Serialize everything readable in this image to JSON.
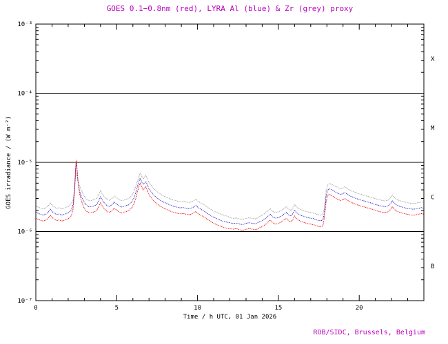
{
  "colors": {
    "magenta": "#bb00bb",
    "axis": "#000000",
    "background": "#ffffff"
  },
  "footer": {
    "credit": "ROB/SIDC, Brussels, Belgium"
  },
  "chart_data": {
    "type": "line",
    "title": "GOES 0.1−0.8nm (red), LYRA Al (blue) & Zr (grey) proxy",
    "xlabel": "Time / h UTC, 01 Jan 2026",
    "ylabel": "GOES irradiance / (W m⁻²)",
    "x_range": [
      0,
      24
    ],
    "y_range": [
      1e-07,
      0.001
    ],
    "y_scale": "log",
    "grid": false,
    "legend_position": "none",
    "x_major_ticks": [
      0,
      5,
      10,
      15,
      20
    ],
    "x_minor_tick_step": 1,
    "y_ticks": [
      {
        "label": "10⁻³",
        "value": 0.001
      },
      {
        "label": "10⁻⁴",
        "value": 0.0001
      },
      {
        "label": "10⁻⁵",
        "value": 1e-05
      },
      {
        "label": "10⁻⁶",
        "value": 1e-06
      },
      {
        "label": "10⁻⁷",
        "value": 1e-07
      }
    ],
    "hlines": [
      0.0001,
      1e-05,
      1e-06
    ],
    "flare_classes": [
      {
        "label": "X",
        "value": 0.000316
      },
      {
        "label": "M",
        "value": 3.16e-05
      },
      {
        "label": "C",
        "value": 3.16e-06
      },
      {
        "label": "B",
        "value": 3.16e-07
      }
    ],
    "values_scale": 1e-06,
    "values_unit": "W m⁻² (values listed in units of 1e-6)",
    "series": [
      {
        "key": "goes-red",
        "name": "GOES 0.1−0.8nm",
        "color": "#ee0000",
        "column": 1
      },
      {
        "key": "lyra-al-blue",
        "name": "LYRA Al proxy",
        "color": "#2222cc",
        "column": 2
      },
      {
        "key": "lyra-zr-grey",
        "name": "LYRA Zr proxy",
        "color": "#9a9a9a",
        "column": 3
      }
    ],
    "points": [
      [
        0,
        1.55,
        1.9,
        2.33
      ],
      [
        0.15,
        1.5,
        1.83,
        2.25
      ],
      [
        0.3,
        1.45,
        1.77,
        2.18
      ],
      [
        0.45,
        1.42,
        1.73,
        2.13
      ],
      [
        0.6,
        1.45,
        1.77,
        2.18
      ],
      [
        0.75,
        1.55,
        1.89,
        2.33
      ],
      [
        0.9,
        1.72,
        2.1,
        2.58
      ],
      [
        1,
        1.6,
        1.95,
        2.4
      ],
      [
        1.15,
        1.5,
        1.83,
        2.25
      ],
      [
        1.3,
        1.44,
        1.76,
        2.16
      ],
      [
        1.45,
        1.47,
        1.79,
        2.21
      ],
      [
        1.6,
        1.42,
        1.73,
        2.13
      ],
      [
        1.75,
        1.45,
        1.77,
        2.18
      ],
      [
        1.9,
        1.5,
        1.83,
        2.25
      ],
      [
        2.05,
        1.55,
        1.89,
        2.33
      ],
      [
        2.2,
        1.7,
        2.07,
        2.55
      ],
      [
        2.3,
        2.1,
        2.45,
        2.9
      ],
      [
        2.4,
        4.2,
        4,
        4.2
      ],
      [
        2.45,
        7.8,
        7.2,
        6.2
      ],
      [
        2.5,
        10.8,
        9.8,
        6.8
      ],
      [
        2.55,
        8.2,
        7.6,
        6.3
      ],
      [
        2.6,
        5.6,
        5.4,
        5.4
      ],
      [
        2.7,
        3.6,
        3.9,
        4.6
      ],
      [
        2.8,
        2.85,
        3.3,
        4
      ],
      [
        2.9,
        2.45,
        2.95,
        3.6
      ],
      [
        3,
        2.15,
        2.62,
        3.23
      ],
      [
        3.15,
        1.95,
        2.38,
        2.93
      ],
      [
        3.3,
        1.85,
        2.26,
        2.78
      ],
      [
        3.45,
        1.88,
        2.29,
        2.82
      ],
      [
        3.6,
        1.92,
        2.34,
        2.88
      ],
      [
        3.75,
        2,
        2.44,
        3
      ],
      [
        3.9,
        2.3,
        2.81,
        3.45
      ],
      [
        4,
        2.6,
        3.17,
        3.9
      ],
      [
        4.1,
        2.35,
        2.87,
        3.53
      ],
      [
        4.25,
        2.1,
        2.56,
        3.15
      ],
      [
        4.4,
        1.95,
        2.38,
        2.93
      ],
      [
        4.55,
        1.88,
        2.29,
        2.82
      ],
      [
        4.7,
        2,
        2.44,
        3
      ],
      [
        4.85,
        2.18,
        2.66,
        3.27
      ],
      [
        5,
        2.05,
        2.5,
        3.08
      ],
      [
        5.15,
        1.92,
        2.34,
        2.88
      ],
      [
        5.3,
        1.85,
        2.26,
        2.78
      ],
      [
        5.45,
        1.9,
        2.32,
        2.85
      ],
      [
        5.6,
        1.95,
        2.38,
        2.93
      ],
      [
        5.75,
        2,
        2.44,
        3
      ],
      [
        5.9,
        2.15,
        2.62,
        3.23
      ],
      [
        6.05,
        2.45,
        2.99,
        3.68
      ],
      [
        6.2,
        3.1,
        3.78,
        4.65
      ],
      [
        6.35,
        4.3,
        5.1,
        6
      ],
      [
        6.45,
        5,
        5.9,
        7
      ],
      [
        6.55,
        4.4,
        5.2,
        6.3
      ],
      [
        6.65,
        4,
        4.8,
        5.8
      ],
      [
        6.8,
        4.5,
        5.3,
        6.5
      ],
      [
        6.9,
        3.9,
        4.7,
        5.7
      ],
      [
        7,
        3.4,
        4.15,
        5.1
      ],
      [
        7.15,
        3.05,
        3.72,
        4.58
      ],
      [
        7.3,
        2.75,
        3.36,
        4.13
      ],
      [
        7.45,
        2.55,
        3.11,
        3.83
      ],
      [
        7.6,
        2.4,
        2.93,
        3.6
      ],
      [
        7.75,
        2.28,
        2.78,
        3.42
      ],
      [
        7.9,
        2.18,
        2.66,
        3.27
      ],
      [
        8.1,
        2.08,
        2.54,
        3.12
      ],
      [
        8.3,
        1.98,
        2.42,
        2.97
      ],
      [
        8.5,
        1.9,
        2.32,
        2.85
      ],
      [
        8.7,
        1.85,
        2.26,
        2.78
      ],
      [
        8.9,
        1.8,
        2.2,
        2.7
      ],
      [
        9.1,
        1.82,
        2.22,
        2.73
      ],
      [
        9.3,
        1.78,
        2.17,
        2.67
      ],
      [
        9.5,
        1.75,
        2.14,
        2.63
      ],
      [
        9.7,
        1.82,
        2.22,
        2.73
      ],
      [
        9.9,
        1.95,
        2.38,
        2.93
      ],
      [
        10,
        1.85,
        2.26,
        2.78
      ],
      [
        10.2,
        1.72,
        2.1,
        2.58
      ],
      [
        10.4,
        1.62,
        1.98,
        2.43
      ],
      [
        10.6,
        1.5,
        1.83,
        2.25
      ],
      [
        10.8,
        1.4,
        1.71,
        2.1
      ],
      [
        11,
        1.32,
        1.61,
        1.98
      ],
      [
        11.2,
        1.25,
        1.53,
        1.88
      ],
      [
        11.4,
        1.2,
        1.46,
        1.8
      ],
      [
        11.6,
        1.15,
        1.4,
        1.73
      ],
      [
        11.8,
        1.12,
        1.37,
        1.68
      ],
      [
        12,
        1.1,
        1.34,
        1.6
      ],
      [
        12.2,
        1.08,
        1.3,
        1.55
      ],
      [
        12.4,
        1.1,
        1.32,
        1.57
      ],
      [
        12.6,
        1.06,
        1.28,
        1.52
      ],
      [
        12.8,
        1.04,
        1.26,
        1.5
      ],
      [
        13,
        1.08,
        1.31,
        1.55
      ],
      [
        13.2,
        1.1,
        1.34,
        1.58
      ],
      [
        13.4,
        1.08,
        1.31,
        1.55
      ],
      [
        13.6,
        1.06,
        1.29,
        1.52
      ],
      [
        13.8,
        1.12,
        1.37,
        1.62
      ],
      [
        14,
        1.18,
        1.44,
        1.72
      ],
      [
        14.2,
        1.26,
        1.54,
        1.85
      ],
      [
        14.4,
        1.4,
        1.71,
        2.05
      ],
      [
        14.5,
        1.46,
        1.78,
        2.15
      ],
      [
        14.65,
        1.34,
        1.63,
        1.96
      ],
      [
        14.8,
        1.28,
        1.56,
        1.88
      ],
      [
        15,
        1.3,
        1.59,
        1.92
      ],
      [
        15.2,
        1.38,
        1.68,
        2.03
      ],
      [
        15.4,
        1.5,
        1.83,
        2.2
      ],
      [
        15.5,
        1.55,
        1.89,
        2.28
      ],
      [
        15.65,
        1.42,
        1.73,
        2.1
      ],
      [
        15.8,
        1.38,
        1.68,
        2.03
      ],
      [
        15.9,
        1.5,
        1.83,
        2.2
      ],
      [
        16,
        1.68,
        2.05,
        2.47
      ],
      [
        16.1,
        1.55,
        1.89,
        2.28
      ],
      [
        16.25,
        1.46,
        1.78,
        2.15
      ],
      [
        16.4,
        1.4,
        1.71,
        2.06
      ],
      [
        16.6,
        1.35,
        1.65,
        1.99
      ],
      [
        16.8,
        1.3,
        1.59,
        1.92
      ],
      [
        17,
        1.28,
        1.56,
        1.88
      ],
      [
        17.2,
        1.25,
        1.53,
        1.84
      ],
      [
        17.4,
        1.2,
        1.46,
        1.77
      ],
      [
        17.6,
        1.17,
        1.43,
        1.72
      ],
      [
        17.75,
        1.2,
        1.46,
        1.77
      ],
      [
        17.85,
        1.6,
        1.9,
        2.2
      ],
      [
        17.95,
        2.7,
        3.2,
        3.8
      ],
      [
        18.05,
        3.3,
        3.95,
        4.7
      ],
      [
        18.15,
        3.45,
        4.15,
        4.95
      ],
      [
        18.25,
        3.35,
        4.05,
        4.85
      ],
      [
        18.4,
        3.2,
        3.9,
        4.7
      ],
      [
        18.55,
        3.05,
        3.72,
        4.5
      ],
      [
        18.7,
        2.9,
        3.54,
        4.28
      ],
      [
        18.85,
        2.8,
        3.42,
        4.13
      ],
      [
        19,
        2.9,
        3.54,
        4.28
      ],
      [
        19.1,
        3,
        3.66,
        4.42
      ],
      [
        19.25,
        2.85,
        3.48,
        4.2
      ],
      [
        19.4,
        2.7,
        3.29,
        3.98
      ],
      [
        19.6,
        2.58,
        3.15,
        3.8
      ],
      [
        19.8,
        2.47,
        3.01,
        3.64
      ],
      [
        20,
        2.38,
        2.9,
        3.51
      ],
      [
        20.2,
        2.3,
        2.81,
        3.39
      ],
      [
        20.4,
        2.24,
        2.73,
        3.3
      ],
      [
        20.6,
        2.16,
        2.64,
        3.18
      ],
      [
        20.8,
        2.1,
        2.56,
        3.1
      ],
      [
        21,
        2.02,
        2.46,
        2.98
      ],
      [
        21.2,
        1.96,
        2.39,
        2.89
      ],
      [
        21.4,
        1.91,
        2.33,
        2.82
      ],
      [
        21.6,
        1.88,
        2.29,
        2.77
      ],
      [
        21.8,
        1.93,
        2.35,
        2.85
      ],
      [
        21.95,
        2.1,
        2.56,
        3.1
      ],
      [
        22.05,
        2.3,
        2.81,
        3.39
      ],
      [
        22.15,
        2.12,
        2.59,
        3.12
      ],
      [
        22.3,
        1.98,
        2.42,
        2.92
      ],
      [
        22.5,
        1.9,
        2.32,
        2.8
      ],
      [
        22.7,
        1.84,
        2.24,
        2.71
      ],
      [
        22.9,
        1.79,
        2.18,
        2.64
      ],
      [
        23.1,
        1.75,
        2.14,
        2.58
      ],
      [
        23.3,
        1.72,
        2.1,
        2.54
      ],
      [
        23.5,
        1.74,
        2.12,
        2.57
      ],
      [
        23.7,
        1.78,
        2.17,
        2.63
      ],
      [
        23.85,
        1.82,
        2.22,
        2.68
      ],
      [
        24,
        1.78,
        2.17,
        2.63
      ]
    ]
  }
}
